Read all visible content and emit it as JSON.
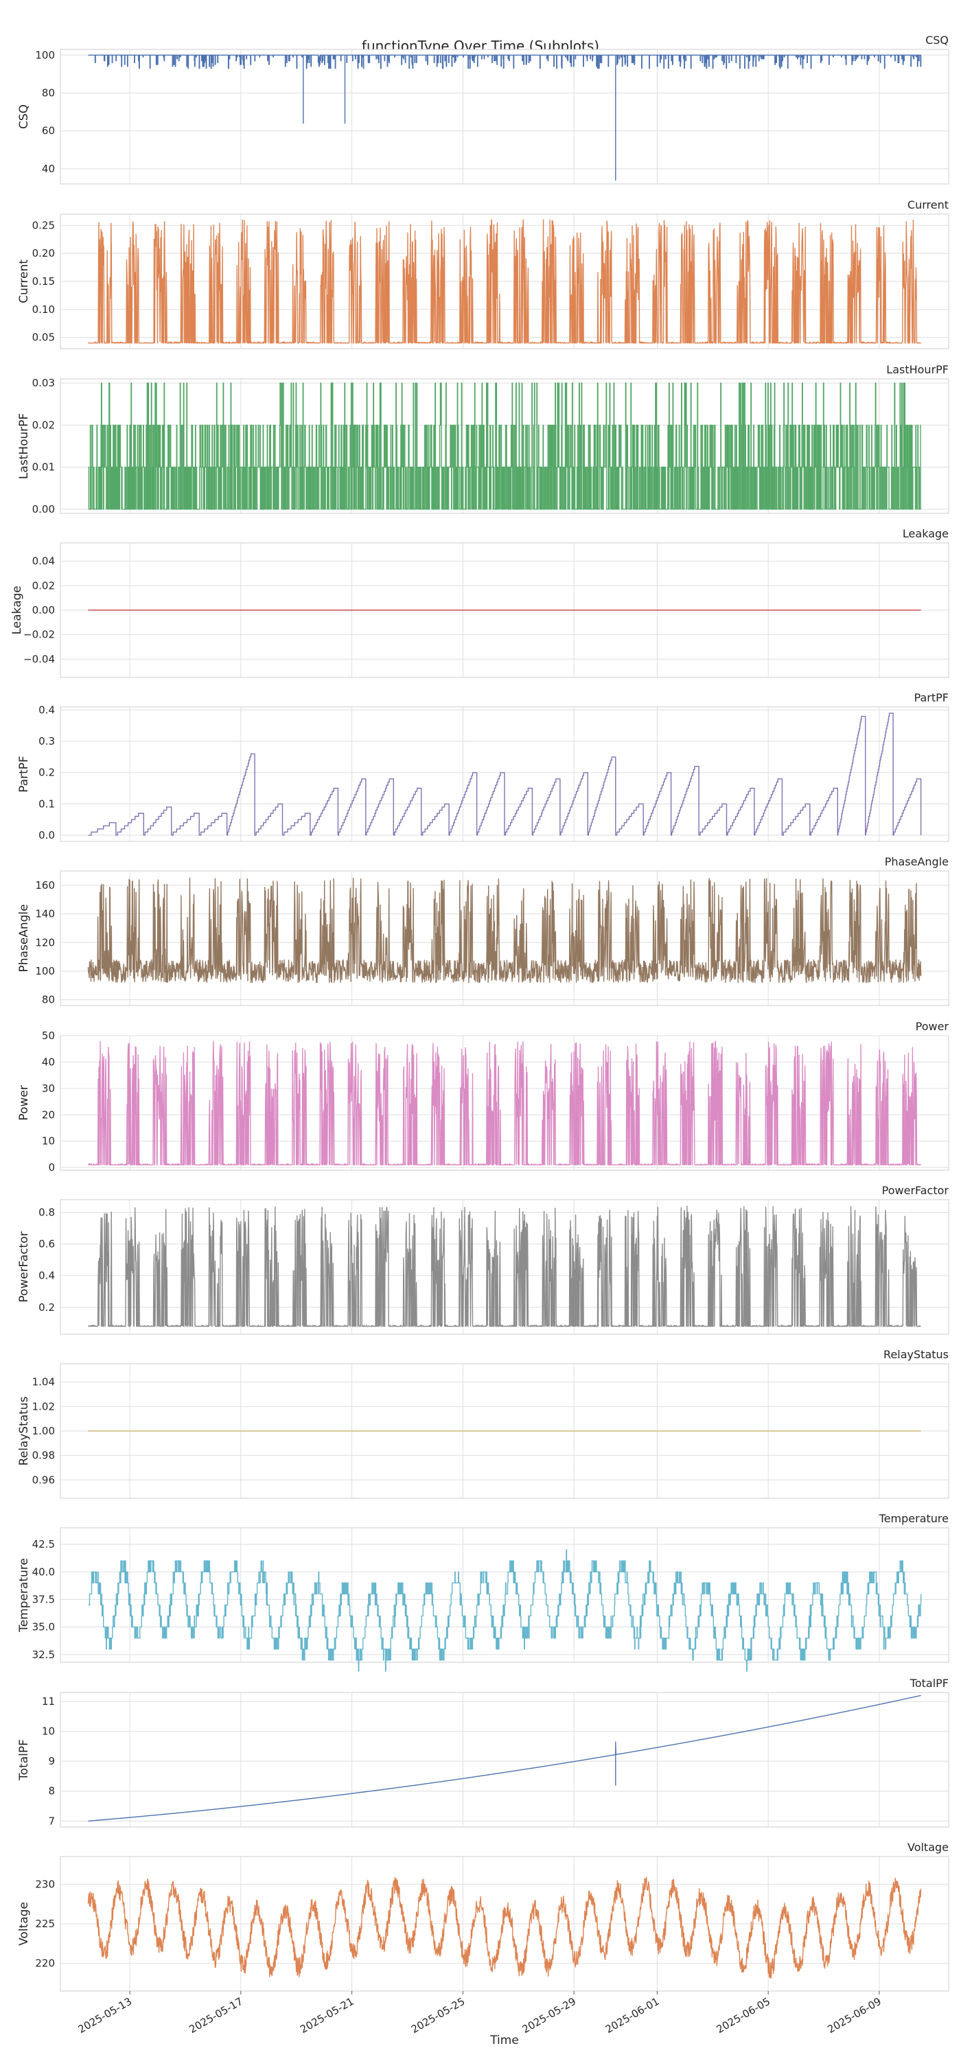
{
  "chart_data": {
    "type": "line",
    "title": "functionType Over Time (Subplots)",
    "xlabel": "Time",
    "x_tick_labels": [
      "2025-05-13",
      "2025-05-17",
      "2025-05-21",
      "2025-05-25",
      "2025-05-29",
      "2025-06-01",
      "2025-06-05",
      "2025-06-09"
    ],
    "x_ticks": [
      "2025-05-13",
      "2025-05-17",
      "2025-05-21",
      "2025-05-25",
      "2025-05-29",
      "2025-06-01",
      "2025-06-05",
      "2025-06-09"
    ],
    "xlim": [
      "2025-05-10T12:00",
      "2025-06-11T12:00"
    ],
    "data_range": [
      "2025-05-11T12:00",
      "2025-06-10T12:00"
    ],
    "grid": true,
    "subplots": [
      {
        "name": "CSQ",
        "ylabel": "CSQ",
        "color": "#4c72b0",
        "ylim": [
          32,
          103
        ],
        "yticks": [
          40,
          60,
          80,
          100
        ],
        "ytick_labels": [
          "40",
          "60",
          "80",
          "100"
        ],
        "baseline": 100,
        "spikes": [
          {
            "date": "2025-05-19T06:00",
            "value": 64
          },
          {
            "date": "2025-05-20T18:00",
            "value": 64
          },
          {
            "date": "2025-05-30T12:00",
            "value": 34
          }
        ],
        "typical_range": [
          93,
          100
        ]
      },
      {
        "name": "Current",
        "ylabel": "Current",
        "color": "#dd8452",
        "ylim": [
          0.03,
          0.27
        ],
        "yticks": [
          0.05,
          0.1,
          0.15,
          0.2,
          0.25
        ],
        "ytick_labels": [
          "0.05",
          "0.10",
          "0.15",
          "0.20",
          "0.25"
        ],
        "baseline": 0.04,
        "typical_range": [
          0.04,
          0.26
        ]
      },
      {
        "name": "LastHourPF",
        "ylabel": "LastHourPF",
        "color": "#55a868",
        "ylim": [
          -0.001,
          0.031
        ],
        "yticks": [
          0.0,
          0.01,
          0.02,
          0.03
        ],
        "ytick_labels": [
          "0.00",
          "0.01",
          "0.02",
          "0.03"
        ],
        "values": [
          0,
          0.01,
          0.02,
          0.03
        ]
      },
      {
        "name": "Leakage",
        "ylabel": "Leakage",
        "color": "#c44e52",
        "ylim": [
          -0.055,
          0.055
        ],
        "yticks": [
          -0.04,
          -0.02,
          0.0,
          0.02,
          0.04
        ],
        "ytick_labels": [
          "−0.04",
          "−0.02",
          "0.00",
          "0.02",
          "0.04"
        ],
        "constant": 0
      },
      {
        "name": "PartPF",
        "ylabel": "PartPF",
        "color": "#8172b3",
        "ylim": [
          -0.02,
          0.41
        ],
        "yticks": [
          0.0,
          0.1,
          0.2,
          0.3,
          0.4
        ],
        "ytick_labels": [
          "0.0",
          "0.1",
          "0.2",
          "0.3",
          "0.4"
        ],
        "daily_peaks": [
          0.04,
          0.07,
          0.09,
          0.07,
          0.07,
          0.26,
          0.1,
          0.07,
          0.15,
          0.18,
          0.18,
          0.15,
          0.1,
          0.2,
          0.2,
          0.15,
          0.18,
          0.2,
          0.25,
          0.1,
          0.2,
          0.22,
          0.1,
          0.15,
          0.18,
          0.1,
          0.15,
          0.38,
          0.39,
          0.18,
          0.07
        ]
      },
      {
        "name": "PhaseAngle",
        "ylabel": "PhaseAngle",
        "color": "#937860",
        "ylim": [
          76,
          170
        ],
        "yticks": [
          80,
          100,
          120,
          140,
          160
        ],
        "ytick_labels": [
          "80",
          "100",
          "120",
          "140",
          "160"
        ],
        "typical_range": [
          88,
          165
        ]
      },
      {
        "name": "Power",
        "ylabel": "Power",
        "color": "#da8bc3",
        "ylim": [
          -1,
          50
        ],
        "yticks": [
          0,
          10,
          20,
          30,
          40,
          50
        ],
        "ytick_labels": [
          "0",
          "10",
          "20",
          "30",
          "40",
          "50"
        ],
        "baseline": 1,
        "typical_range": [
          1,
          48
        ]
      },
      {
        "name": "PowerFactor",
        "ylabel": "PowerFactor",
        "color": "#8c8c8c",
        "ylim": [
          0.03,
          0.88
        ],
        "yticks": [
          0.2,
          0.4,
          0.6,
          0.8
        ],
        "ytick_labels": [
          "0.2",
          "0.4",
          "0.6",
          "0.8"
        ],
        "baseline": 0.08,
        "typical_range": [
          0.07,
          0.84
        ]
      },
      {
        "name": "RelayStatus",
        "ylabel": "RelayStatus",
        "color": "#ccb974",
        "ylim": [
          0.945,
          1.055
        ],
        "yticks": [
          0.96,
          0.98,
          1.0,
          1.02,
          1.04
        ],
        "ytick_labels": [
          "0.96",
          "0.98",
          "1.00",
          "1.02",
          "1.04"
        ],
        "constant": 1
      },
      {
        "name": "Temperature",
        "ylabel": "Temperature",
        "color": "#64b5cd",
        "ylim": [
          31.8,
          44
        ],
        "yticks": [
          32.5,
          35.0,
          37.5,
          40.0,
          42.5
        ],
        "ytick_labels": [
          "32.5",
          "35.0",
          "37.5",
          "40.0",
          "42.5"
        ],
        "typical_range": [
          32,
          43.5
        ]
      },
      {
        "name": "TotalPF",
        "ylabel": "TotalPF",
        "color": "#4c72b0",
        "ylim": [
          6.8,
          11.3
        ],
        "yticks": [
          7,
          8,
          9,
          10,
          11
        ],
        "ytick_labels": [
          "7",
          "8",
          "9",
          "10",
          "11"
        ],
        "start": 7.0,
        "end": 11.2,
        "dip": {
          "date": "2025-05-30T12:00",
          "value": 8.2
        }
      },
      {
        "name": "Voltage",
        "ylabel": "Voltage",
        "color": "#dd8452",
        "ylim": [
          216.5,
          233.5
        ],
        "yticks": [
          220,
          225,
          230
        ],
        "ytick_labels": [
          "220",
          "225",
          "230"
        ],
        "typical_range": [
          218,
          232
        ]
      }
    ]
  }
}
